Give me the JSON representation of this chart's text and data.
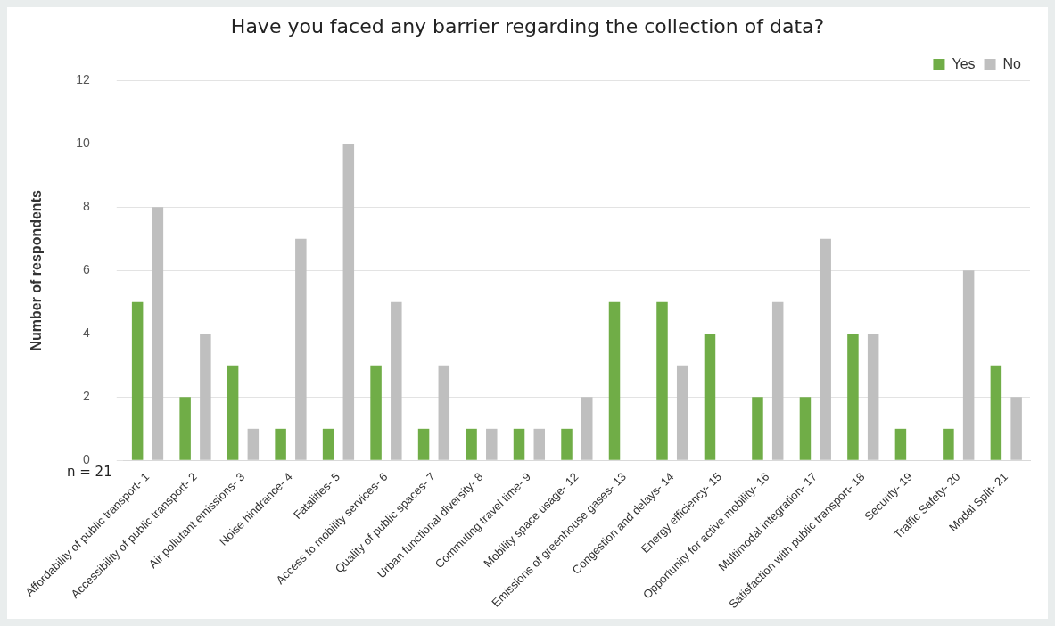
{
  "chart_data": {
    "type": "bar",
    "title": "Have you faced any barrier regarding the collection of data?",
    "ylabel": "Number of respondents",
    "categories": [
      "Affordability of public transport- 1",
      "Accessibility of public transport- 2",
      "Air pollutant emissions- 3",
      "Noise hindrance- 4",
      "Fatalities- 5",
      "Access to mobility services- 6",
      "Quality of public spaces- 7",
      "Urban functional diversity- 8",
      "Commuting travel time- 9",
      "Mobility space usage- 12",
      "Emissions of greenhouse gases- 13",
      "Congestion and delays- 14",
      "Energy efficiency- 15",
      "Opportunity for active mobility- 16",
      "Multimodal integration- 17",
      "Satisfaction with public transport- 18",
      "Security- 19",
      "Traffic Safety- 20",
      "Modal Split- 21"
    ],
    "series": [
      {
        "name": "Yes",
        "color": "#70ad47",
        "values": [
          5,
          2,
          3,
          1,
          1,
          3,
          1,
          1,
          1,
          1,
          5,
          5,
          4,
          2,
          2,
          4,
          1,
          1,
          3
        ]
      },
      {
        "name": "No",
        "color": "#bfbfbf",
        "values": [
          8,
          4,
          1,
          7,
          10,
          5,
          3,
          1,
          1,
          2,
          0,
          3,
          0,
          5,
          7,
          4,
          0,
          6,
          2
        ]
      }
    ],
    "ylim": [
      0,
      12
    ],
    "yticks": [
      0,
      2,
      4,
      6,
      8,
      10,
      12
    ],
    "grid": "y",
    "legend": "top right",
    "annotations": [
      "n = 21"
    ]
  }
}
